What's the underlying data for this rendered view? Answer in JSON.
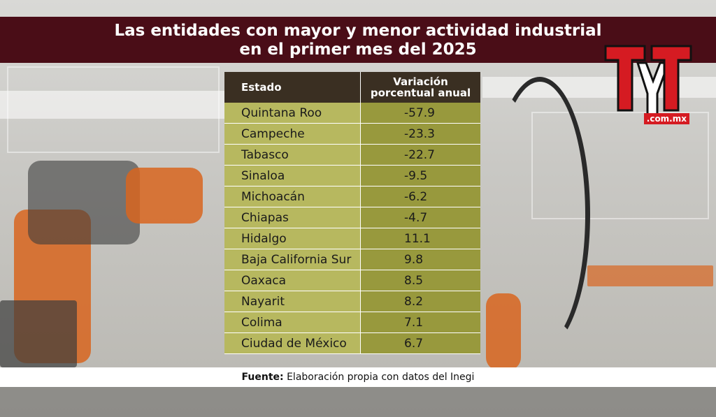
{
  "title_line1": "Las entidades con mayor y menor actividad industrial",
  "title_line2": "en el primer mes del 2025",
  "logo": {
    "text": "TyT",
    "domain": ".com.mx",
    "color": "#d51b22"
  },
  "footer": {
    "label": "Fuente:",
    "text": "Elaboración propia con datos del Inegi"
  },
  "chart_data": {
    "type": "table",
    "columns": [
      "Estado",
      "Variación porcentual anual"
    ],
    "rows": [
      {
        "state": "Quintana Roo",
        "value": "-57.9"
      },
      {
        "state": "Campeche",
        "value": "-23.3"
      },
      {
        "state": "Tabasco",
        "value": "-22.7"
      },
      {
        "state": "Sinaloa",
        "value": "-9.5"
      },
      {
        "state": "Michoacán",
        "value": "-6.2"
      },
      {
        "state": "Chiapas",
        "value": "-4.7"
      },
      {
        "state": "Hidalgo",
        "value": "11.1"
      },
      {
        "state": "Baja California Sur",
        "value": "9.8"
      },
      {
        "state": "Oaxaca",
        "value": "8.5"
      },
      {
        "state": "Nayarit",
        "value": "8.2"
      },
      {
        "state": "Colima",
        "value": "7.1"
      },
      {
        "state": "Ciudad de México",
        "value": "6.7"
      }
    ]
  }
}
